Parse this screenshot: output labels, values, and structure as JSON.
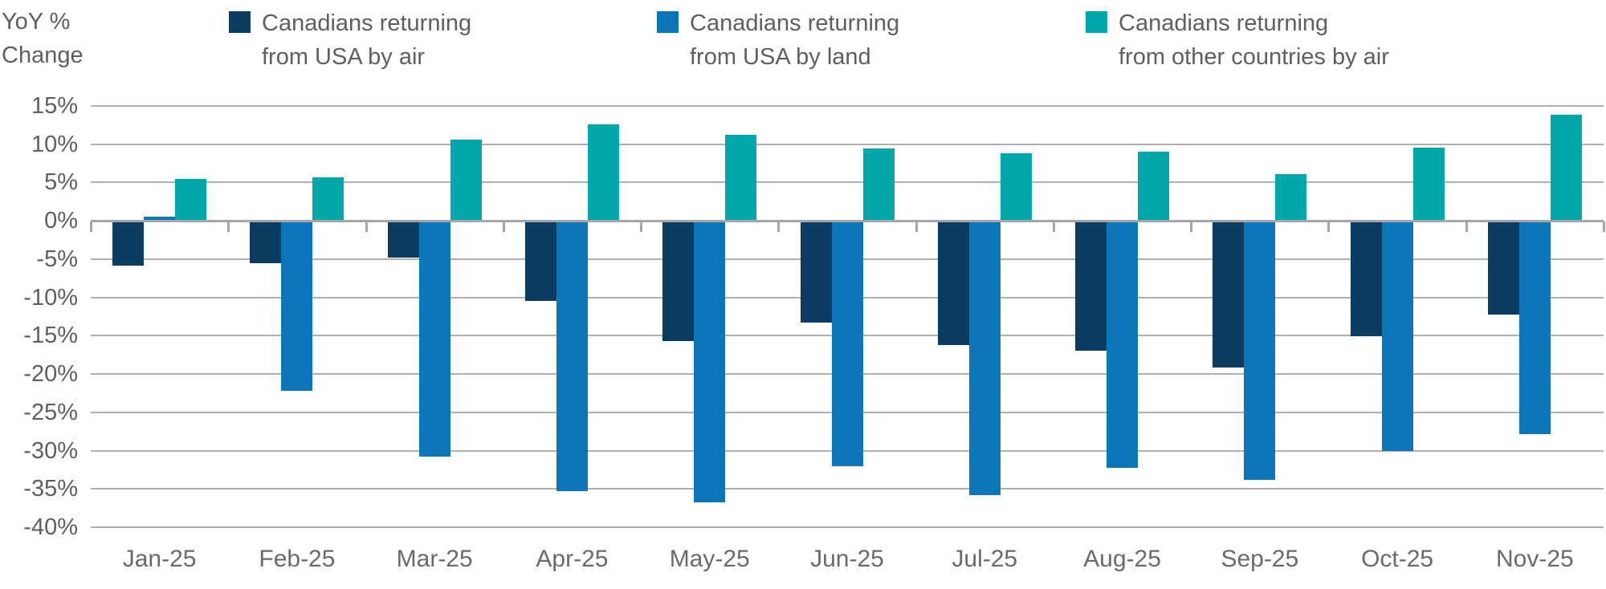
{
  "header": {
    "y_axis_title_line1": "YoY %",
    "y_axis_title_line2": "Change"
  },
  "chart_data": {
    "type": "bar",
    "title": "",
    "xlabel": "",
    "ylabel": "YoY % Change",
    "categories": [
      "Jan-25",
      "Feb-25",
      "Mar-25",
      "Apr-25",
      "May-25",
      "Jun-25",
      "Jul-25",
      "Aug-25",
      "Sep-25",
      "Oct-25",
      "Nov-25"
    ],
    "series": [
      {
        "name": "Canadians returning from USA by air",
        "label_lines": [
          "Canadians returning",
          "from USA by air"
        ],
        "color": "#0c3c61",
        "values": [
          -5.8,
          -5.5,
          -4.8,
          -10.5,
          -15.7,
          -13.3,
          -16.2,
          -17.0,
          -19.2,
          -15.1,
          -12.2
        ]
      },
      {
        "name": "Canadians returning from USA by land",
        "label_lines": [
          "Canadians returning",
          "from USA by land"
        ],
        "color": "#0d76b9",
        "values": [
          0.5,
          -22.2,
          -30.8,
          -35.3,
          -36.8,
          -32.0,
          -35.8,
          -32.3,
          -33.8,
          -30.0,
          -27.9
        ]
      },
      {
        "name": "Canadians returning from other countries by air",
        "label_lines": [
          "Canadians returning",
          "from other countries by air"
        ],
        "color": "#00a7ab",
        "values": [
          5.5,
          5.7,
          10.6,
          12.6,
          11.2,
          9.5,
          8.8,
          9.0,
          6.1,
          9.6,
          13.9
        ]
      }
    ],
    "y_ticks": [
      15,
      10,
      5,
      0,
      -5,
      -10,
      -15,
      -20,
      -25,
      -30,
      -35,
      -40
    ],
    "y_tick_labels": [
      "15%",
      "10%",
      "5%",
      "0%",
      "-5%",
      "-10%",
      "-15%",
      "-20%",
      "-25%",
      "-30%",
      "-35%",
      "-40%"
    ],
    "ylim": [
      -40,
      15
    ],
    "grid": true,
    "legend_position": "top"
  },
  "colors": {
    "gridline": "#b0b0b0",
    "zero_axis": "#a6a6a6",
    "text": "#5f5f5f"
  }
}
